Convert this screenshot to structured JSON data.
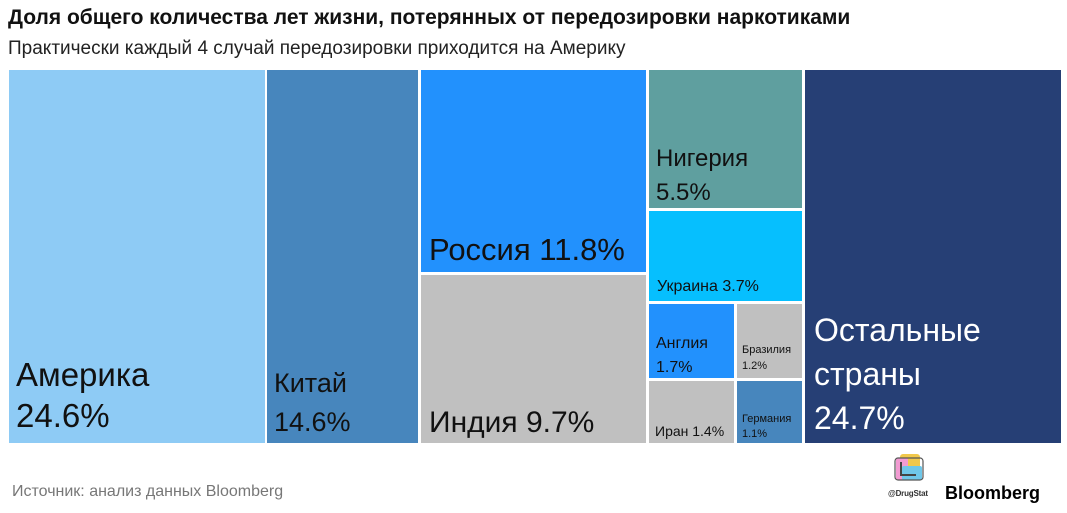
{
  "header": {
    "title": "Доля общего количества лет жизни, потерянных от передозировки наркотиками",
    "subtitle": "Практически каждый 4 случай передозировки приходится на Америку"
  },
  "footer": {
    "source": "Источник: анализ данных Bloomberg",
    "logo_caption": "@DrugStat",
    "brand": "Bloomberg"
  },
  "chart_data": {
    "type": "treemap",
    "unit": "%",
    "items": [
      {
        "name": "Америка",
        "value": 24.6,
        "labels": [
          "Америка",
          "24.6%"
        ],
        "color": "#8ecbf5",
        "text_color": "#111111"
      },
      {
        "name": "Китай",
        "value": 14.6,
        "labels": [
          "Китай",
          "14.6%"
        ],
        "color": "#4786bd",
        "text_color": "#111111"
      },
      {
        "name": "Россия",
        "value": 11.8,
        "labels": [
          "Россия 11.8%"
        ],
        "color": "#2291fd",
        "text_color": "#111111"
      },
      {
        "name": "Индия",
        "value": 9.7,
        "labels": [
          "Индия 9.7%"
        ],
        "color": "#c0c0c0",
        "text_color": "#111111"
      },
      {
        "name": "Нигерия",
        "value": 5.5,
        "labels": [
          "Нигерия",
          "5.5%"
        ],
        "color": "#5f9f9f",
        "text_color": "#111111"
      },
      {
        "name": "Украина",
        "value": 3.7,
        "labels": [
          "Украина 3.7%"
        ],
        "color": "#06bffe",
        "text_color": "#111111"
      },
      {
        "name": "Англия",
        "value": 1.7,
        "labels": [
          "Англия",
          "1.7%"
        ],
        "color": "#2291fd",
        "text_color": "#111111"
      },
      {
        "name": "Бразилия",
        "value": 1.2,
        "labels": [
          "Бразилия",
          "1.2%"
        ],
        "color": "#c0c0c0",
        "text_color": "#111111"
      },
      {
        "name": "Иран",
        "value": 1.4,
        "labels": [
          "Иран 1.4%"
        ],
        "color": "#c0c0c0",
        "text_color": "#111111"
      },
      {
        "name": "Германия",
        "value": 1.1,
        "labels": [
          "Германия",
          "1.1%"
        ],
        "color": "#4786bd",
        "text_color": "#111111"
      },
      {
        "name": "Остальные страны",
        "value": 24.7,
        "labels": [
          "Остальные",
          "страны",
          "24.7%"
        ],
        "color": "#263f75",
        "text_color": "#ffffff"
      }
    ]
  }
}
